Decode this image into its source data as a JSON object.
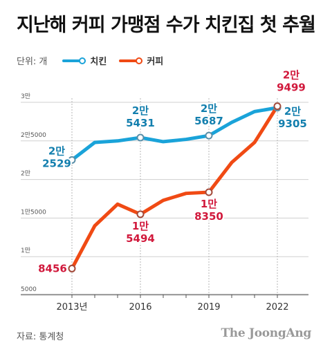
{
  "title": "지난해 커피 가맹점 수가 치킨집 첫 추월",
  "unit_label": "단위: 개",
  "source": "자료: 통계청",
  "brand": "The JoongAng",
  "colors": {
    "chicken": "#1aa3d9",
    "coffee": "#f04a14",
    "label_chicken": "#137fae",
    "label_coffee": "#d1193c"
  },
  "chart_data": {
    "type": "line",
    "x": [
      2013,
      2014,
      2015,
      2016,
      2017,
      2018,
      2019,
      2020,
      2021,
      2022
    ],
    "xticks": [
      "2013년",
      "2016",
      "2019",
      "2022"
    ],
    "xtick_values": [
      2013,
      2016,
      2019,
      2022
    ],
    "yticks": [
      "3만",
      "2만5000",
      "2만",
      "1만5000",
      "1만",
      "5000"
    ],
    "ytick_values": [
      30000,
      25000,
      20000,
      15000,
      10000,
      5000
    ],
    "ylim": [
      5000,
      30000
    ],
    "series": [
      {
        "name": "치킨",
        "values": [
          22529,
          24800,
          25000,
          25431,
          24900,
          25200,
          25687,
          27400,
          28800,
          29305
        ],
        "labels": [
          {
            "x": 2013,
            "text": "2만\n2529"
          },
          {
            "x": 2016,
            "text": "2만\n5431"
          },
          {
            "x": 2019,
            "text": "2만\n5687"
          },
          {
            "x": 2022,
            "text": "2만\n9305"
          }
        ]
      },
      {
        "name": "커피",
        "values": [
          8456,
          14000,
          16800,
          15494,
          17300,
          18200,
          18350,
          22200,
          24800,
          29499
        ],
        "labels": [
          {
            "x": 2013,
            "text": "8456"
          },
          {
            "x": 2016,
            "text": "1만\n5494"
          },
          {
            "x": 2019,
            "text": "1만\n8350"
          },
          {
            "x": 2022,
            "text": "2만\n9499"
          }
        ]
      }
    ]
  }
}
